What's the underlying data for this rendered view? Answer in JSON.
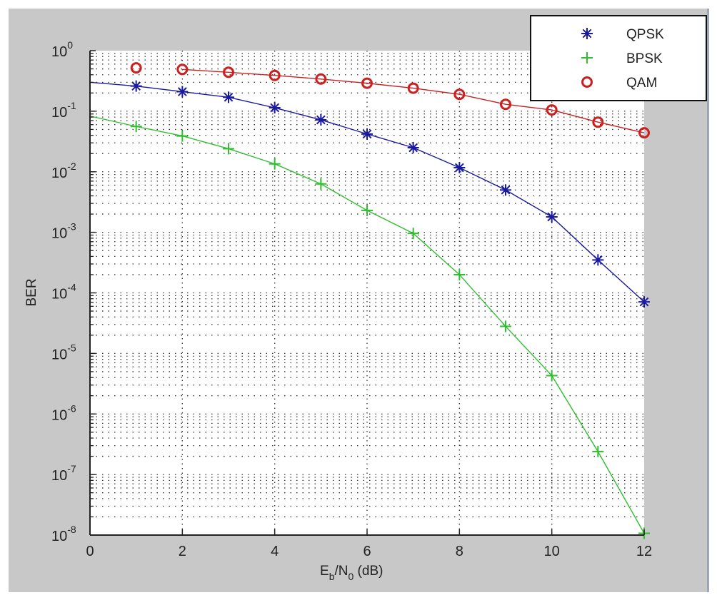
{
  "chart_data": {
    "type": "line",
    "title": "",
    "xlabel": "Eb/N0 (dB)",
    "xlabel_parts": {
      "main": "E",
      "sub1": "b",
      "mid": "/N",
      "sub2": "0",
      "tail": " (dB)"
    },
    "ylabel": "BER",
    "xlim": [
      0,
      12
    ],
    "ylim": [
      1e-08,
      1
    ],
    "yscale": "log",
    "grid": true,
    "legend_position": "upper right",
    "x_ticks": [
      0,
      2,
      4,
      6,
      8,
      10,
      12
    ],
    "y_ticks": [
      {
        "exp": "0"
      },
      {
        "exp": "-1"
      },
      {
        "exp": "-2"
      },
      {
        "exp": "-3"
      },
      {
        "exp": "-4"
      },
      {
        "exp": "-5"
      },
      {
        "exp": "-6"
      },
      {
        "exp": "-7"
      },
      {
        "exp": "-8"
      }
    ],
    "x": [
      0,
      1,
      2,
      3,
      4,
      5,
      6,
      7,
      8,
      9,
      10,
      11,
      12
    ],
    "series": [
      {
        "name": "QPSK",
        "color": "#1a1aa0",
        "marker": "asterisk",
        "line_x": [
          0,
          1,
          2,
          3,
          4,
          5,
          6,
          7,
          8,
          9,
          10,
          11,
          12
        ],
        "line_values": [
          0.3,
          0.26,
          0.21,
          0.17,
          0.114,
          0.072,
          0.042,
          0.025,
          0.0117,
          0.005,
          0.0018,
          0.00035,
          7.1e-05
        ],
        "marker_x": [
          1,
          2,
          3,
          4,
          5,
          6,
          7,
          8,
          9,
          10,
          11,
          12
        ],
        "values": [
          0.26,
          0.21,
          0.17,
          0.114,
          0.072,
          0.042,
          0.025,
          0.0117,
          0.005,
          0.0018,
          0.00035,
          7.1e-05
        ]
      },
      {
        "name": "BPSK",
        "color": "#2fbf2f",
        "marker": "plus",
        "line_x": [
          0,
          1,
          2,
          3,
          4,
          5,
          6,
          7,
          8,
          9,
          10,
          11,
          12
        ],
        "line_values": [
          0.083,
          0.056,
          0.039,
          0.024,
          0.0135,
          0.0063,
          0.0023,
          0.00096,
          0.0002,
          2.8e-05,
          4.3e-06,
          2.4e-07,
          1.07e-08
        ],
        "marker_x": [
          1,
          2,
          3,
          4,
          5,
          6,
          7,
          8,
          9,
          10,
          11,
          12
        ],
        "values": [
          0.056,
          0.039,
          0.024,
          0.0135,
          0.0063,
          0.0023,
          0.00096,
          0.0002,
          2.8e-05,
          4.3e-06,
          2.4e-07,
          1.07e-08
        ]
      },
      {
        "name": "QAM",
        "color": "#cc1f1f",
        "marker": "circle",
        "line_x": [
          2,
          3,
          4,
          5,
          6,
          7,
          8,
          9,
          10,
          11,
          12
        ],
        "line_values": [
          0.49,
          0.44,
          0.39,
          0.34,
          0.29,
          0.24,
          0.19,
          0.13,
          0.105,
          0.066,
          0.044
        ],
        "marker_x": [
          1,
          2,
          3,
          4,
          5,
          6,
          7,
          8,
          9,
          10,
          11,
          12
        ],
        "values": [
          0.52,
          0.49,
          0.44,
          0.39,
          0.34,
          0.29,
          0.24,
          0.19,
          0.13,
          0.105,
          0.066,
          0.044
        ]
      }
    ]
  },
  "legend": {
    "items": [
      {
        "label": "QPSK",
        "marker": "asterisk",
        "color": "#1a1aa0"
      },
      {
        "label": "BPSK",
        "marker": "plus",
        "color": "#2fbf2f"
      },
      {
        "label": "QAM",
        "marker": "circle",
        "color": "#cc1f1f"
      }
    ]
  },
  "colors": {
    "figure_bg": "#c8c8c8",
    "axes_bg": "#ffffff",
    "axis": "#222222",
    "grid": "#333333"
  }
}
